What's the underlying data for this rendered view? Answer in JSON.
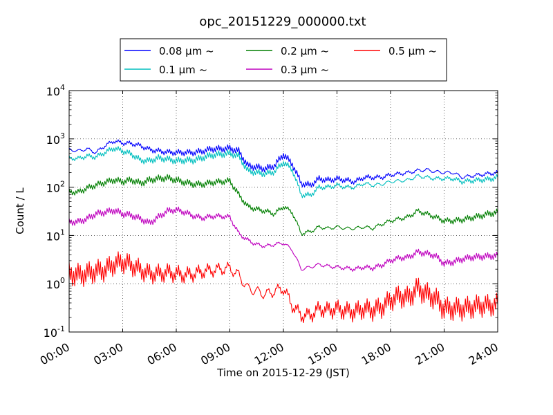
{
  "chart_data": {
    "type": "line",
    "title": "opc_20151229_000000.txt",
    "xlabel": "Time on 2015-12-29 (JST)",
    "ylabel": "Count / L",
    "yscale": "log",
    "ylim": [
      0.1,
      10000
    ],
    "y_ticks": [
      {
        "value": 0.1,
        "base": "10",
        "exp": "-1"
      },
      {
        "value": 1,
        "base": "10",
        "exp": "0"
      },
      {
        "value": 10,
        "base": "10",
        "exp": "1"
      },
      {
        "value": 100,
        "base": "10",
        "exp": "2"
      },
      {
        "value": 1000,
        "base": "10",
        "exp": "3"
      },
      {
        "value": 10000,
        "base": "10",
        "exp": "4"
      }
    ],
    "xlim": [
      "00:00",
      "24:00"
    ],
    "x_ticks": [
      "00:00",
      "03:00",
      "06:00",
      "09:00",
      "12:00",
      "15:00",
      "18:00",
      "21:00",
      "24:00"
    ],
    "grid": true,
    "legend_position": "top",
    "x": [
      "00:00",
      "00:30",
      "01:00",
      "01:30",
      "02:00",
      "02:30",
      "03:00",
      "03:30",
      "04:00",
      "04:30",
      "05:00",
      "05:30",
      "06:00",
      "06:30",
      "07:00",
      "07:30",
      "08:00",
      "08:30",
      "09:00",
      "09:30",
      "10:00",
      "10:30",
      "11:00",
      "11:30",
      "12:00",
      "12:30",
      "13:00",
      "13:30",
      "14:00",
      "14:30",
      "15:00",
      "15:30",
      "16:00",
      "16:30",
      "17:00",
      "17:30",
      "18:00",
      "18:30",
      "19:00",
      "19:30",
      "20:00",
      "20:30",
      "21:00",
      "21:30",
      "22:00",
      "22:30",
      "23:00",
      "23:30",
      "24:00"
    ],
    "series": [
      {
        "name": "0.08 μm ~",
        "color": "#0000ff",
        "values": [
          600,
          560,
          620,
          520,
          720,
          900,
          820,
          800,
          720,
          600,
          560,
          530,
          520,
          520,
          520,
          560,
          620,
          620,
          640,
          560,
          280,
          260,
          240,
          280,
          480,
          300,
          120,
          110,
          150,
          140,
          150,
          140,
          130,
          160,
          160,
          160,
          180,
          190,
          200,
          220,
          230,
          210,
          200,
          200,
          160,
          170,
          180,
          190,
          200
        ]
      },
      {
        "name": "0.1 μm ~",
        "color": "#00bfbf",
        "values": [
          400,
          390,
          440,
          420,
          520,
          640,
          560,
          480,
          360,
          350,
          400,
          380,
          350,
          360,
          360,
          410,
          460,
          480,
          500,
          440,
          220,
          200,
          190,
          210,
          330,
          230,
          70,
          68,
          100,
          100,
          110,
          100,
          100,
          120,
          110,
          115,
          130,
          135,
          140,
          170,
          160,
          150,
          150,
          150,
          130,
          135,
          140,
          145,
          160
        ]
      },
      {
        "name": "0.2 μm ~",
        "color": "#007f00",
        "values": [
          80,
          78,
          95,
          110,
          125,
          140,
          130,
          140,
          120,
          140,
          150,
          155,
          140,
          125,
          115,
          115,
          125,
          130,
          135,
          70,
          40,
          35,
          32,
          28,
          40,
          30,
          11,
          12,
          15,
          14,
          15,
          14,
          14,
          15,
          14,
          17,
          20,
          22,
          24,
          32,
          28,
          24,
          20,
          20,
          21,
          23,
          25,
          28,
          30
        ]
      },
      {
        "name": "0.3 μm ~",
        "color": "#bf00bf",
        "values": [
          19,
          19,
          22,
          28,
          30,
          33,
          28,
          26,
          22,
          18,
          24,
          32,
          34,
          30,
          25,
          23,
          25,
          25,
          24,
          11,
          8,
          6.5,
          6,
          6.5,
          7,
          5,
          2,
          2.2,
          2.5,
          2.3,
          2.2,
          2.1,
          2,
          2.2,
          2.1,
          2.4,
          3,
          3.4,
          3.5,
          4.5,
          4.2,
          3.8,
          2.6,
          2.8,
          3.2,
          3.5,
          3.6,
          3.7,
          3.8
        ]
      },
      {
        "name": "0.5 μm ~",
        "color": "#ff0000",
        "values": [
          1.6,
          1.5,
          1.6,
          1.8,
          1.9,
          2.5,
          2.8,
          2.4,
          1.9,
          1.6,
          1.6,
          1.7,
          1.6,
          1.5,
          1.6,
          1.8,
          1.9,
          2,
          2.1,
          1.5,
          0.8,
          0.7,
          0.6,
          0.7,
          0.8,
          0.35,
          0.22,
          0.22,
          0.3,
          0.28,
          0.3,
          0.27,
          0.26,
          0.3,
          0.28,
          0.32,
          0.45,
          0.55,
          0.5,
          0.8,
          0.6,
          0.5,
          0.3,
          0.3,
          0.3,
          0.32,
          0.35,
          0.35,
          0.37
        ]
      }
    ]
  }
}
